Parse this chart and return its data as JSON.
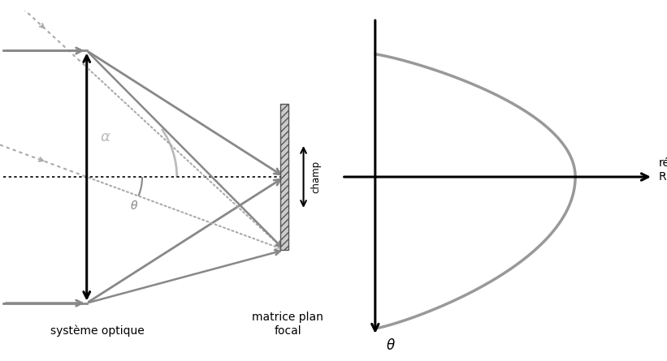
{
  "background_color": "#ffffff",
  "gray": "#888888",
  "lgray": "#aaaaaa",
  "dgray": "#666666",
  "arc_color": "#bbbbbb",
  "right_curve_color": "#999999",
  "label_systeme": "système optique",
  "label_matrice": "matrice plan\nfocal",
  "label_alpha": "α",
  "label_theta": "θ",
  "label_reponse": "réponse\nR(θ) ?",
  "label_theta_right": "θ"
}
